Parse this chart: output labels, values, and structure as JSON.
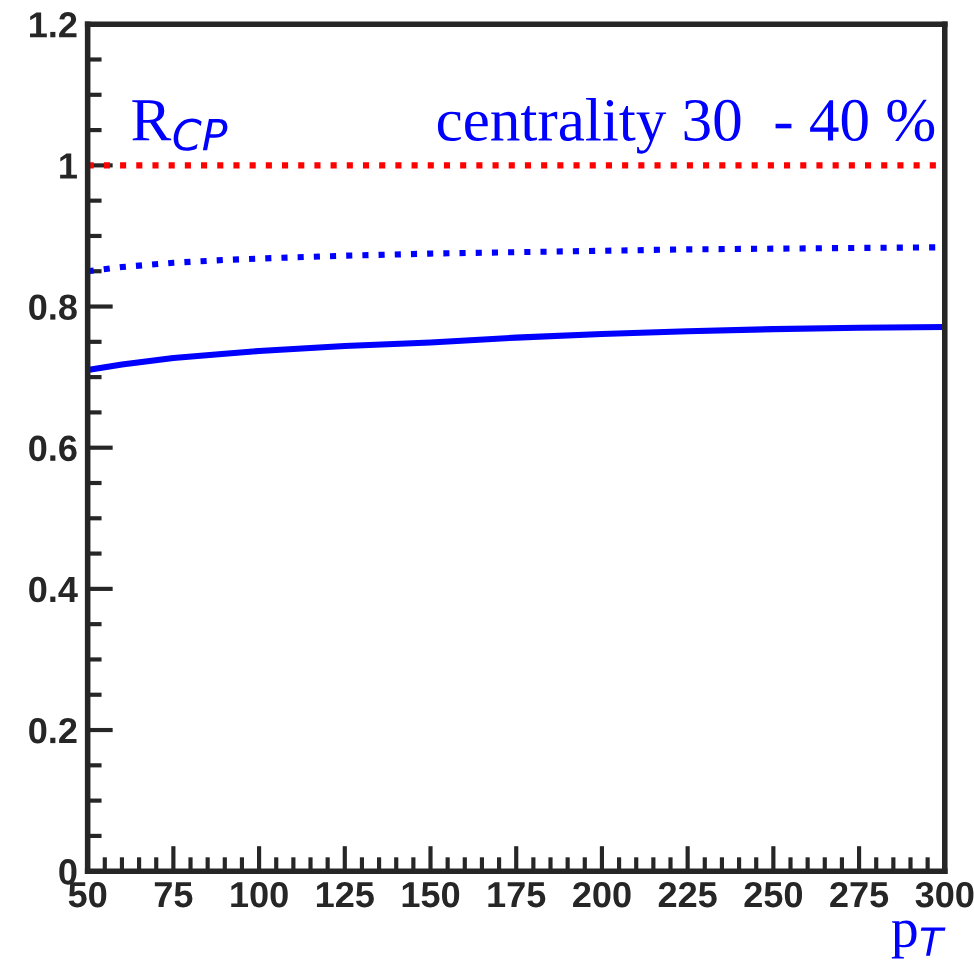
{
  "chart_data": {
    "type": "line",
    "x": [
      50,
      60,
      75,
      90,
      100,
      125,
      150,
      175,
      200,
      225,
      250,
      275,
      300
    ],
    "series": [
      {
        "color": "#0000ff",
        "line_style": "dotted",
        "values": [
          0.85,
          0.856,
          0.862,
          0.866,
          0.868,
          0.872,
          0.875,
          0.877,
          0.879,
          0.881,
          0.882,
          0.883,
          0.884
        ]
      },
      {
        "color": "#0000ff",
        "line_style": "solid",
        "values": [
          0.71,
          0.718,
          0.727,
          0.733,
          0.737,
          0.744,
          0.749,
          0.756,
          0.761,
          0.765,
          0.768,
          0.77,
          0.771
        ]
      }
    ],
    "ref_lines": [
      {
        "axis": "y",
        "value": 1,
        "color": "#ff0000",
        "line_style": "dotted"
      }
    ],
    "annotations": [
      "R$_{CP}$",
      "centrality 30  - 40 %"
    ],
    "xlabel": "p$_{T}$",
    "xlim": [
      50,
      300
    ],
    "xticks": [
      50,
      75,
      100,
      125,
      150,
      175,
      200,
      225,
      250,
      275,
      300
    ],
    "ylim": [
      0,
      1.2
    ],
    "yticks": [
      0,
      0.2,
      0.4,
      0.6,
      0.8,
      1,
      1.2
    ],
    "grid": false,
    "legend": false
  }
}
